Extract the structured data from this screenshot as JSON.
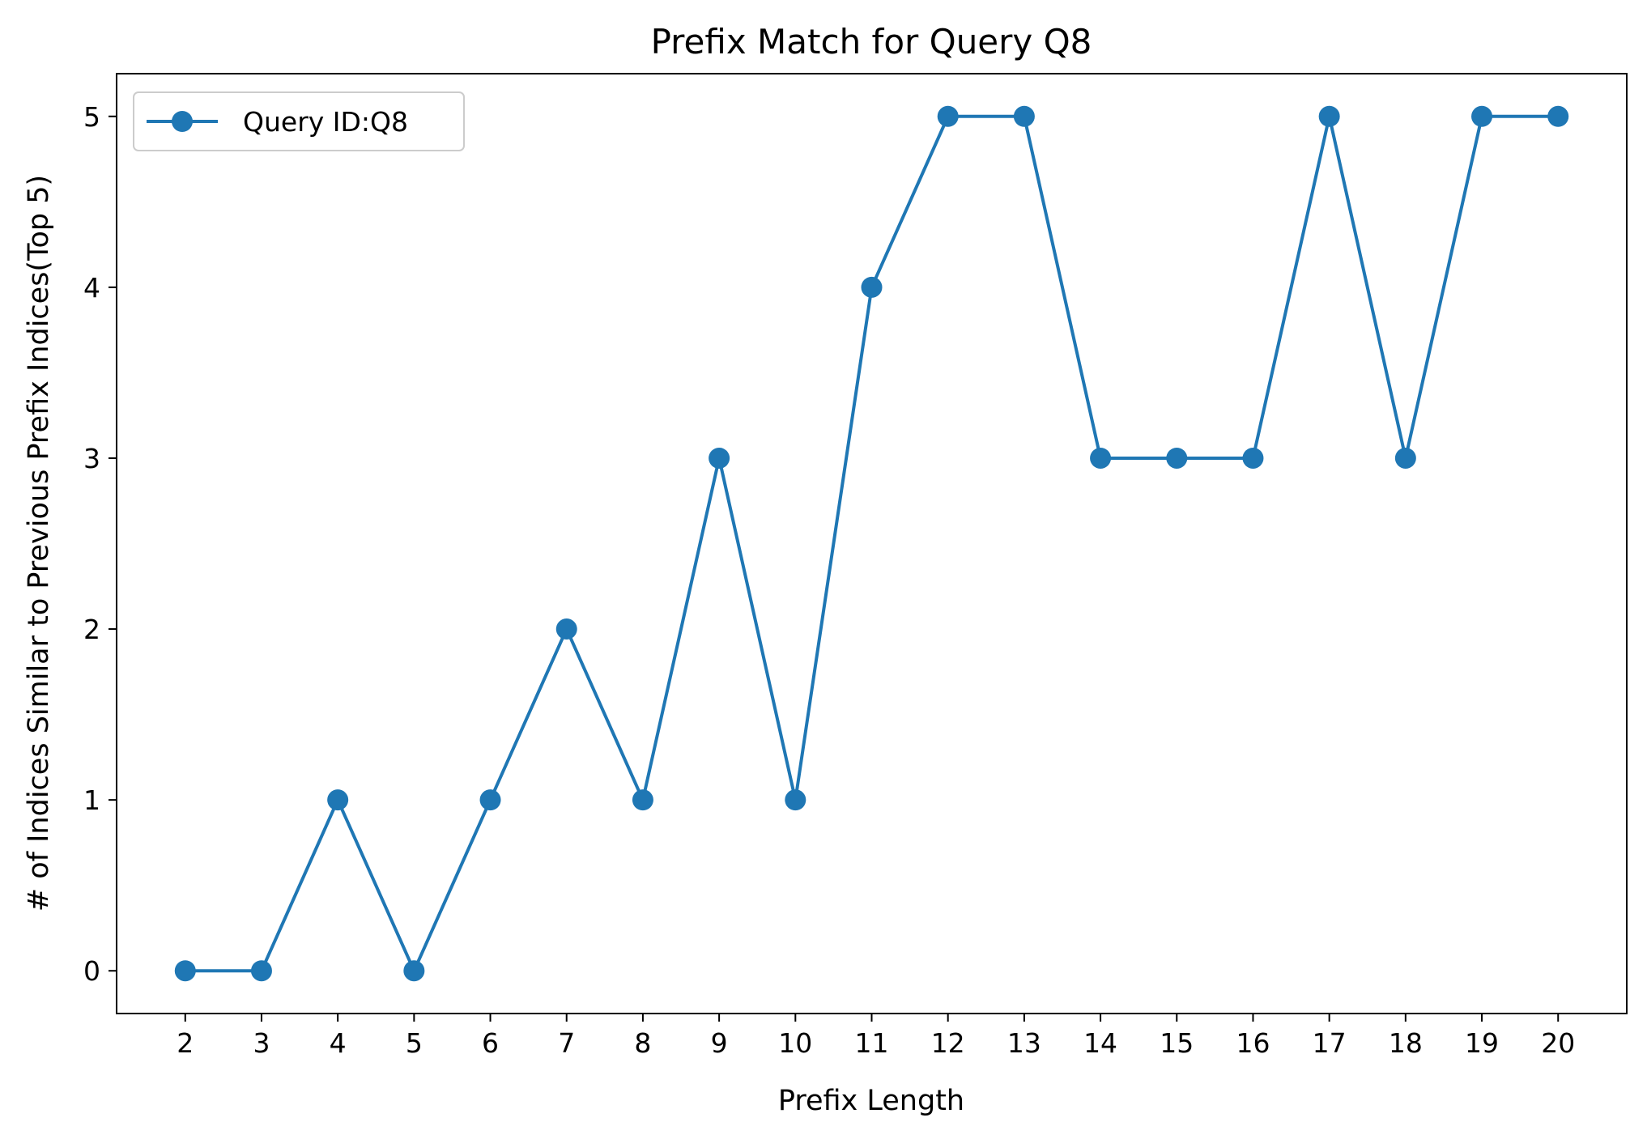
{
  "chart_data": {
    "type": "line",
    "title": "Prefix Match for Query Q8",
    "xlabel": "Prefix Length",
    "ylabel": "# of Indices Similar to Previous Prefix Indices(Top 5)",
    "x": [
      2,
      3,
      4,
      5,
      6,
      7,
      8,
      9,
      10,
      11,
      12,
      13,
      14,
      15,
      16,
      17,
      18,
      19,
      20
    ],
    "xticks": [
      "2",
      "3",
      "4",
      "5",
      "6",
      "7",
      "8",
      "9",
      "10",
      "11",
      "12",
      "13",
      "14",
      "15",
      "16",
      "17",
      "18",
      "19",
      "20"
    ],
    "yticks": [
      "0",
      "1",
      "2",
      "3",
      "4",
      "5"
    ],
    "xlim": [
      1.1,
      20.9
    ],
    "ylim": [
      -0.25,
      5.25
    ],
    "grid": false,
    "legend_position": "top-left",
    "series": [
      {
        "name": "Query ID:Q8",
        "color": "#1f77b4",
        "marker": "circle",
        "values": [
          0,
          0,
          1,
          0,
          1,
          2,
          1,
          3,
          1,
          4,
          5,
          5,
          3,
          3,
          3,
          5,
          3,
          5,
          5
        ]
      }
    ]
  }
}
